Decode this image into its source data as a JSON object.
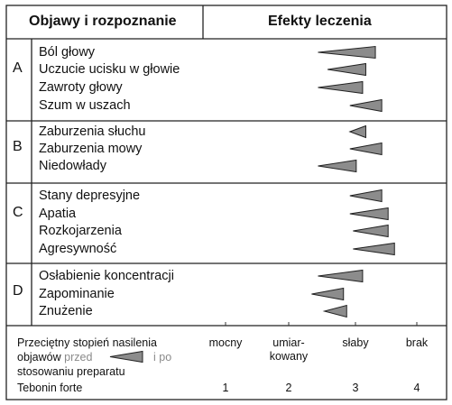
{
  "header": {
    "left": "Objawy i rozpoznanie",
    "right": "Efekty leczenia"
  },
  "groups": [
    {
      "letter": "A",
      "symptoms": [
        "Ból głowy",
        "Uczucie ucisku w głowie",
        "Zawroty głowy",
        "Szum w uszach"
      ]
    },
    {
      "letter": "B",
      "symptoms": [
        "Zaburzenia słuchu",
        "Zaburzenia mowy",
        "Niedowłady"
      ]
    },
    {
      "letter": "C",
      "symptoms": [
        "Stany depresyjne",
        "Apatia",
        "Rozkojarzenia",
        "Agresywność"
      ]
    },
    {
      "letter": "D",
      "symptoms": [
        "Osłabienie koncentracji",
        "Zapominanie",
        "Znużenie"
      ]
    }
  ],
  "legend": {
    "line1": "Przeciętny stopień nasilenia",
    "line2a": "objawów",
    "przed": "przed",
    "i_po": "i po",
    "line3": "stosowaniu preparatu",
    "line4": "Tebonin forte"
  },
  "scale": [
    {
      "label": [
        "mocny"
      ],
      "number": "1"
    },
    {
      "label": [
        "umiar-",
        "kowany"
      ],
      "number": "2"
    },
    {
      "label": [
        "słaby"
      ],
      "number": "3"
    },
    {
      "label": [
        "brak"
      ],
      "number": "4"
    }
  ],
  "colors": {
    "triangle_fill": "#8c8c8c",
    "border": "#222222"
  },
  "chart_data": {
    "type": "bar",
    "title": "Efekty leczenia",
    "note": "each triangle spans from the average symptom severity before (narrow tip) to after (wide end) using Tebonin forte",
    "scale_labels": [
      "mocny",
      "umiar-kowany",
      "słaby",
      "brak"
    ],
    "xlim": [
      1,
      4
    ],
    "categories": [
      "Ból głowy",
      "Uczucie ucisku w głowie",
      "Zawroty głowy",
      "Szum w uszach",
      "Zaburzenia słuchu",
      "Zaburzenia mowy",
      "Niedowłady",
      "Stany depresyjne",
      "Apatia",
      "Rozkojarzenia",
      "Agresywność",
      "Osłabienie koncentracji",
      "Zapominanie",
      "Znużenie"
    ],
    "series": [
      {
        "name": "przed",
        "values": [
          2.45,
          2.6,
          2.45,
          2.95,
          2.95,
          2.95,
          2.45,
          2.95,
          2.95,
          3.0,
          3.0,
          2.45,
          2.35,
          2.55
        ]
      },
      {
        "name": "po",
        "values": [
          3.35,
          3.2,
          3.15,
          3.45,
          3.2,
          3.45,
          3.05,
          3.45,
          3.55,
          3.55,
          3.65,
          3.15,
          2.85,
          2.9
        ]
      }
    ]
  }
}
